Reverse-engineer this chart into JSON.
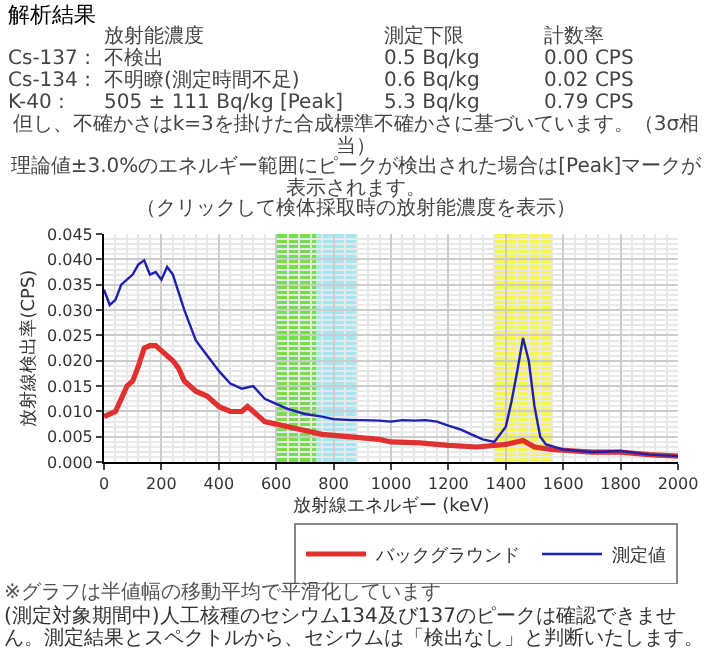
{
  "chart_data": {
    "type": "line",
    "title": "解析結果",
    "annotations": [
      "放射能濃度",
      "測定下限",
      "計数率",
      "Cs-137 :",
      "不検出",
      "0.5 Bq/kg",
      "0.00 CPS",
      "Cs-134 :",
      "不明瞭(測定時間不足)",
      "0.6 Bq/kg",
      "0.02 CPS",
      "K-40 :",
      "505 ± 111 Bq/kg [Peak]",
      "5.3 Bq/kg",
      "0.79 CPS",
      "但し、不確かさはk=3を掛けた合成標準不確かさに基づいています。（3σ相当）",
      "理論値±3.0%のエネルギー範囲にピークが検出された場合は[Peak]マークが表示されます。",
      "（クリックして検体採取時の放射能濃度を表示）",
      "※グラフは半値幅の移動平均で平滑化しています",
      "(測定対象期間中)人工核種のセシウム134及び137のピークは確認できません。測定結果とスペクトルから、セシウムは「検出なし」と判断いたします。"
    ],
    "xlabel": "放射線エネルギー (keV)",
    "ylabel": "放射線検出率(CPS)",
    "series": [
      {
        "name": "バックグラウンド",
        "color": "#e03030",
        "x": [
          0,
          40,
          60,
          80,
          100,
          120,
          140,
          160,
          180,
          200,
          220,
          240,
          260,
          280,
          320,
          360,
          400,
          440,
          480,
          500,
          520,
          560,
          600,
          680,
          760,
          860,
          960,
          1000,
          1100,
          1200,
          1300,
          1400,
          1460,
          1500,
          1560,
          1700,
          1800,
          1900,
          2000
        ],
        "values": [
          0.009,
          0.01,
          0.0125,
          0.015,
          0.016,
          0.019,
          0.0225,
          0.023,
          0.023,
          0.022,
          0.021,
          0.02,
          0.0185,
          0.016,
          0.014,
          0.013,
          0.011,
          0.01,
          0.01,
          0.011,
          0.01,
          0.008,
          0.0075,
          0.0065,
          0.0055,
          0.005,
          0.0045,
          0.004,
          0.0038,
          0.0033,
          0.003,
          0.0035,
          0.0043,
          0.003,
          0.0025,
          0.002,
          0.002,
          0.0015,
          0.0012
        ]
      },
      {
        "name": "測定値",
        "color": "#2020b0",
        "x": [
          0,
          20,
          40,
          60,
          100,
          120,
          140,
          160,
          180,
          200,
          220,
          240,
          280,
          320,
          360,
          400,
          440,
          480,
          520,
          560,
          600,
          640,
          700,
          760,
          800,
          860,
          900,
          960,
          1000,
          1040,
          1080,
          1120,
          1160,
          1200,
          1240,
          1280,
          1320,
          1360,
          1400,
          1420,
          1440,
          1460,
          1480,
          1500,
          1520,
          1540,
          1600,
          1700,
          1800,
          1900,
          2000
        ],
        "values": [
          0.034,
          0.031,
          0.032,
          0.035,
          0.037,
          0.039,
          0.0398,
          0.037,
          0.0375,
          0.036,
          0.0385,
          0.037,
          0.03,
          0.024,
          0.021,
          0.018,
          0.0155,
          0.0145,
          0.015,
          0.0125,
          0.0115,
          0.0105,
          0.0095,
          0.009,
          0.0085,
          0.0083,
          0.0083,
          0.0082,
          0.008,
          0.0083,
          0.0082,
          0.0083,
          0.008,
          0.0072,
          0.0065,
          0.0055,
          0.0045,
          0.004,
          0.007,
          0.012,
          0.018,
          0.0245,
          0.02,
          0.011,
          0.005,
          0.0035,
          0.0025,
          0.002,
          0.0022,
          0.0015,
          0.0012
        ]
      }
    ],
    "xlim": [
      0,
      2000
    ],
    "xticks": [
      0,
      200,
      400,
      600,
      800,
      1000,
      1200,
      1400,
      1600,
      1800,
      2000
    ],
    "ylim": [
      0,
      0.045
    ],
    "yticks": [
      {
        "value": 0,
        "label": "0.000"
      },
      {
        "value": 0.005,
        "label": "0.005"
      },
      {
        "value": 0.01,
        "label": "0.010"
      },
      {
        "value": 0.015,
        "label": "0.015"
      },
      {
        "value": 0.02,
        "label": "0.020"
      },
      {
        "value": 0.025,
        "label": "0.025"
      },
      {
        "value": 0.03,
        "label": "0.030"
      },
      {
        "value": 0.035,
        "label": "0.035"
      },
      {
        "value": 0.04,
        "label": "0.040"
      },
      {
        "value": 0.045,
        "label": "0.045"
      }
    ],
    "bands": [
      {
        "axis": "x",
        "from": 600,
        "to": 740,
        "color": "#66dd33"
      },
      {
        "axis": "x",
        "from": 740,
        "to": 880,
        "color": "#99e6f0"
      },
      {
        "axis": "x",
        "from": 1360,
        "to": 1560,
        "color": "#f5f53a"
      }
    ],
    "grid": true,
    "legend": "bottom",
    "marker": "none",
    "line_style": "solid"
  }
}
